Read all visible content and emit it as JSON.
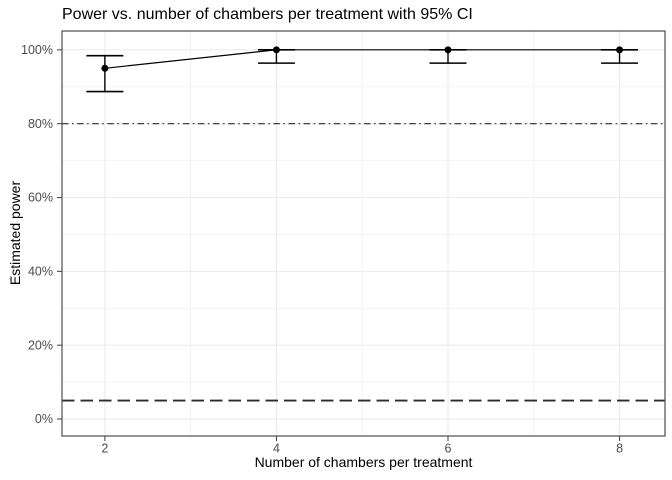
{
  "chart_data": {
    "type": "line",
    "title": "Power vs. number of chambers per treatment with 95% CI",
    "xlabel": "Number of chambers per treatment",
    "ylabel": "Estimated power",
    "x": [
      2,
      4,
      6,
      8
    ],
    "series": [
      {
        "name": "Estimated power (%)",
        "values": [
          95,
          100,
          100,
          100
        ],
        "ci_lower": [
          88.7,
          96.4,
          96.4,
          96.4
        ],
        "ci_upper": [
          98.4,
          100,
          100,
          100
        ]
      }
    ],
    "reference_lines": [
      {
        "y": 80,
        "style": "dashdot"
      },
      {
        "y": 5,
        "style": "dashed"
      }
    ],
    "x_ticks": {
      "values": [
        2,
        4,
        6,
        8
      ],
      "labels": [
        "2",
        "4",
        "6",
        "8"
      ]
    },
    "y_ticks": {
      "values": [
        0,
        20,
        40,
        60,
        80,
        100
      ],
      "labels": [
        "0%",
        "20%",
        "40%",
        "60%",
        "80%",
        "100%"
      ]
    },
    "x_minor": [
      3,
      5,
      7
    ],
    "y_minor": [
      10,
      30,
      50,
      70,
      90
    ],
    "x_range": [
      1.5,
      8.53
    ],
    "y_range": [
      -4.6,
      105.1
    ],
    "grid": true,
    "legend": "none"
  },
  "colors": {
    "background": "#ffffff",
    "panel_border": "#4d4d4d",
    "grid_major": "#ebebeb",
    "grid_minor": "#f2f2f2",
    "data": "#000000",
    "axis_text": "#4d4d4d",
    "axis_title": "#000000",
    "ref_line": "#2b2b2b"
  }
}
